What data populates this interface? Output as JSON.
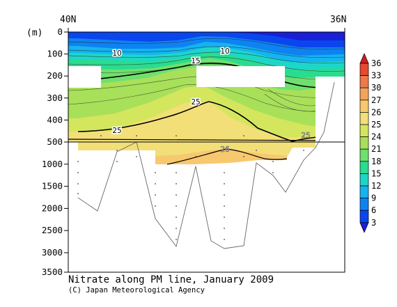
{
  "chart_data": {
    "type": "contour",
    "title": "Nitrate along PM line, January 2009",
    "credit": "(C) Japan Meteorological Agency",
    "x_tick_labels": [
      "40N",
      "36N"
    ],
    "ylabel": "(m)",
    "y_ticks": [
      "0",
      "100",
      "200",
      "300",
      "400",
      "500",
      "1000",
      "1500",
      "2000",
      "2500",
      "3000",
      "3500"
    ],
    "y_axis_note": "two-segment depth axis: 0-500 m expanded, 500-3500 m compressed",
    "contour_labels": [
      "10",
      "10",
      "15",
      "25",
      "25",
      "25",
      "26"
    ],
    "colorbar": {
      "levels": [
        "3",
        "6",
        "9",
        "12",
        "15",
        "18",
        "21",
        "24",
        "25",
        "26",
        "27",
        "30",
        "33",
        "36"
      ],
      "colors": [
        "#1a1fd8",
        "#0a46ee",
        "#0f82f2",
        "#14b4f0",
        "#1ed6c8",
        "#2adc8e",
        "#6fe06e",
        "#a8e05a",
        "#d4e65e",
        "#f2df78",
        "#f8c86e",
        "#f4a45a",
        "#ee7a4a",
        "#e64a30",
        "#d01e1e"
      ]
    }
  }
}
